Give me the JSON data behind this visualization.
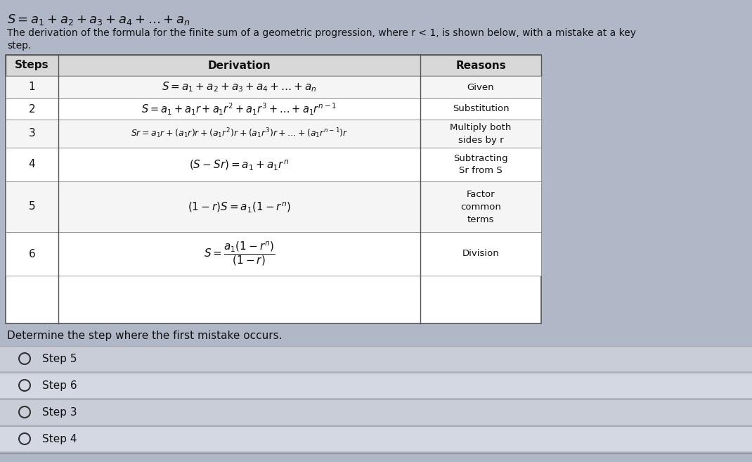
{
  "bg_color": "#b0b8c8",
  "table_bg": "#ffffff",
  "header_bg": "#d8d8d8",
  "row_bg_even": "#f5f5f5",
  "row_bg_odd": "#ffffff",
  "option_bg_1": "#c8cdd8",
  "option_bg_2": "#d4d8e2",
  "text_color": "#111111",
  "title_formula": "S = a_1 + a_2 + a_3 + a_4 + ... + a_n",
  "subtitle_line1": "The derivation of the formula for the finite sum of a geometric progression, where r < 1, is shown below, with a mistake at a key",
  "subtitle_line2": "step.",
  "col_steps_label": "Steps",
  "col_deriv_label": "Derivation",
  "col_reasons_label": "Reasons",
  "row_steps": [
    "1",
    "2",
    "3",
    "4",
    "5",
    "6"
  ],
  "reasons": [
    "Given",
    "Substitution",
    "Multiply both\nsides by r",
    "Subtracting\nSr from S",
    "Factor\ncommon\nterms",
    "Division"
  ],
  "question": "Determine the step where the first mistake occurs.",
  "options": [
    "Step 5",
    "Step 6",
    "Step 3",
    "Step 4"
  ]
}
